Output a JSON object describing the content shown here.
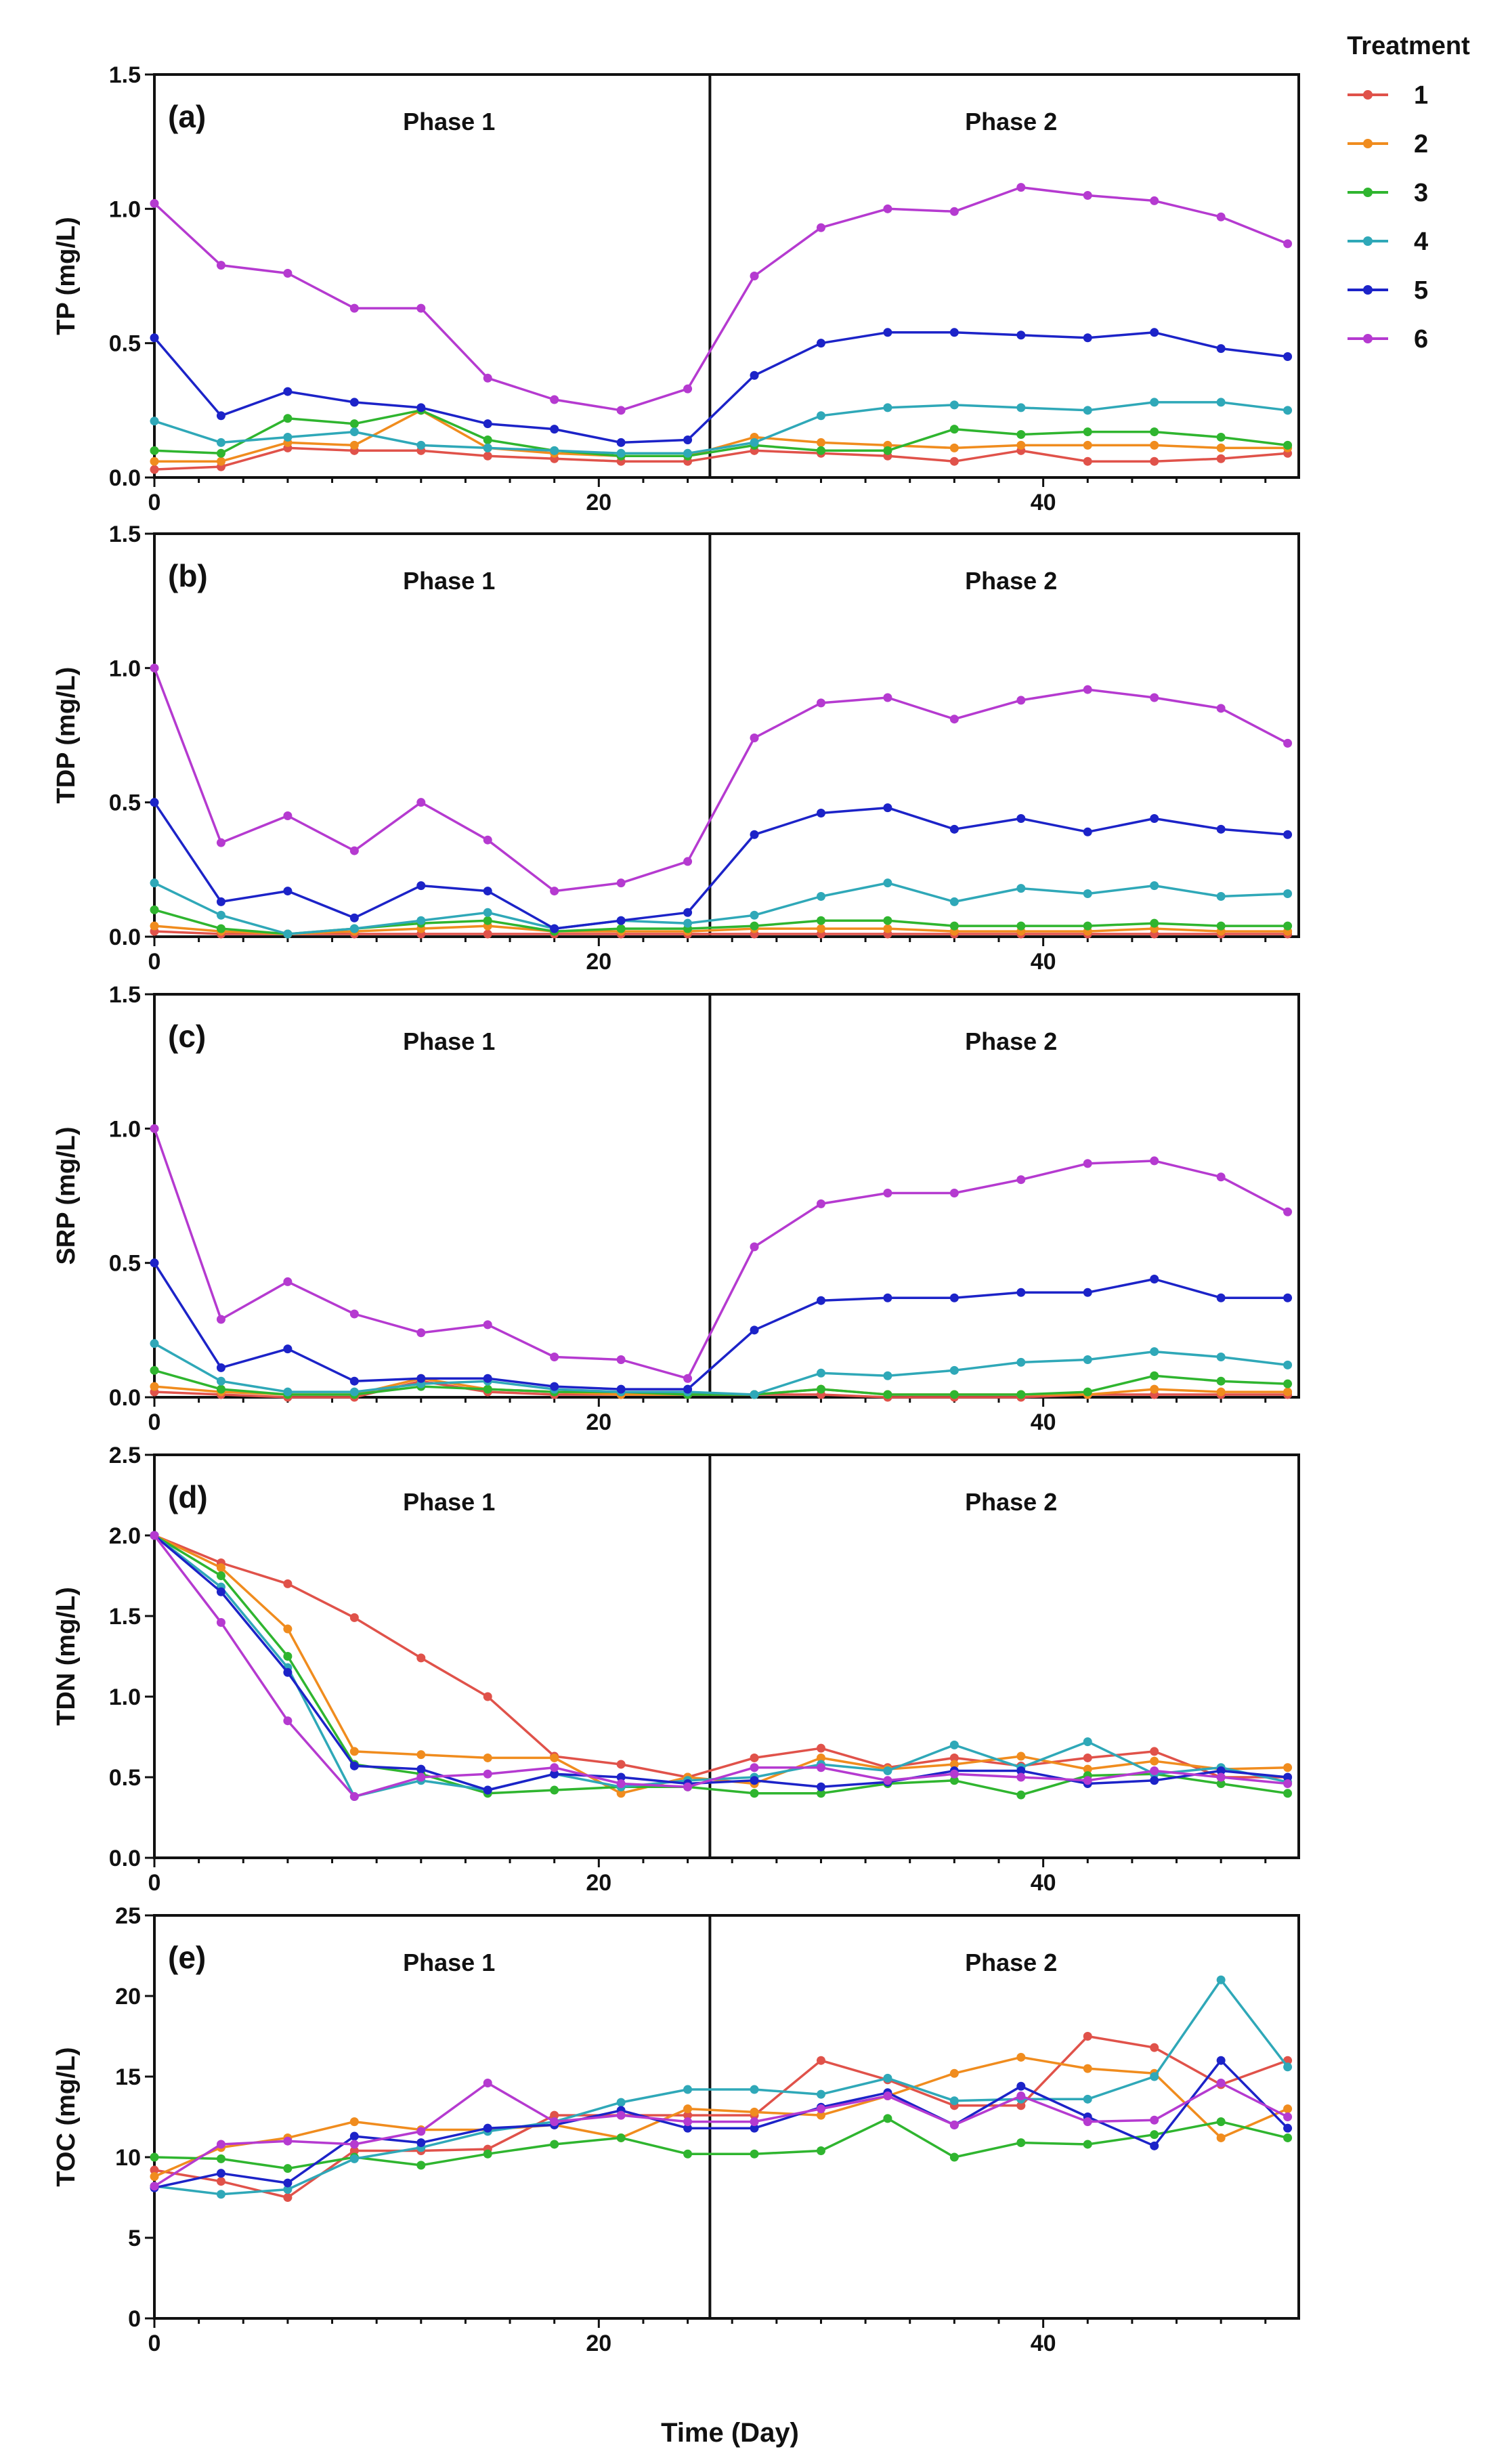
{
  "figure": {
    "xlabel": "Time (Day)",
    "legend_title": "Treatment",
    "legend_position": "top-right",
    "treatments": [
      {
        "name": "1",
        "color": "#e0524a"
      },
      {
        "name": "2",
        "color": "#f08c1e"
      },
      {
        "name": "3",
        "color": "#2fb52f"
      },
      {
        "name": "4",
        "color": "#2fa8b8"
      },
      {
        "name": "5",
        "color": "#1c23c8"
      },
      {
        "name": "6",
        "color": "#b53ad0"
      }
    ]
  },
  "chart_data": [
    {
      "id": "a",
      "panel_label": "(a)",
      "type": "line",
      "ylabel": "TP (mg/L)",
      "ylim": [
        0,
        1.5
      ],
      "yticks": [
        0.0,
        0.5,
        1.0,
        1.5
      ],
      "xlim": [
        0,
        51.5
      ],
      "xticks": [
        0,
        20,
        40
      ],
      "phase_boundary": 25,
      "phases": [
        "Phase 1",
        "Phase 2"
      ],
      "x": [
        0,
        3,
        6,
        9,
        12,
        15,
        18,
        21,
        24,
        27,
        30,
        33,
        36,
        39,
        42,
        45,
        48,
        51
      ],
      "series": [
        {
          "name": "1",
          "values": [
            0.03,
            0.04,
            0.11,
            0.1,
            0.1,
            0.08,
            0.07,
            0.06,
            0.06,
            0.1,
            0.09,
            0.08,
            0.06,
            0.1,
            0.06,
            0.06,
            0.07,
            0.09
          ]
        },
        {
          "name": "2",
          "values": [
            0.06,
            0.06,
            0.13,
            0.12,
            0.25,
            0.11,
            0.09,
            0.08,
            0.08,
            0.15,
            0.13,
            0.12,
            0.11,
            0.12,
            0.12,
            0.12,
            0.11,
            0.11
          ]
        },
        {
          "name": "3",
          "values": [
            0.1,
            0.09,
            0.22,
            0.2,
            0.25,
            0.14,
            0.1,
            0.08,
            0.08,
            0.12,
            0.1,
            0.1,
            0.18,
            0.16,
            0.17,
            0.17,
            0.15,
            0.12
          ]
        },
        {
          "name": "4",
          "values": [
            0.21,
            0.13,
            0.15,
            0.17,
            0.12,
            0.11,
            0.1,
            0.09,
            0.09,
            0.13,
            0.23,
            0.26,
            0.27,
            0.26,
            0.25,
            0.28,
            0.28,
            0.25
          ]
        },
        {
          "name": "5",
          "values": [
            0.52,
            0.23,
            0.32,
            0.28,
            0.26,
            0.2,
            0.18,
            0.13,
            0.14,
            0.38,
            0.5,
            0.54,
            0.54,
            0.53,
            0.52,
            0.54,
            0.48,
            0.45
          ]
        },
        {
          "name": "6",
          "values": [
            1.02,
            0.79,
            0.76,
            0.63,
            0.63,
            0.37,
            0.29,
            0.25,
            0.33,
            0.75,
            0.93,
            1.0,
            0.99,
            1.08,
            1.05,
            1.03,
            0.97,
            0.87
          ]
        }
      ]
    },
    {
      "id": "b",
      "panel_label": "(b)",
      "type": "line",
      "ylabel": "TDP  (mg/L)",
      "ylim": [
        0,
        1.5
      ],
      "yticks": [
        0.0,
        0.5,
        1.0,
        1.5
      ],
      "xlim": [
        0,
        51.5
      ],
      "xticks": [
        0,
        20,
        40
      ],
      "phase_boundary": 25,
      "phases": [
        "Phase 1",
        "Phase 2"
      ],
      "x": [
        0,
        3,
        6,
        9,
        12,
        15,
        18,
        21,
        24,
        27,
        30,
        33,
        36,
        39,
        42,
        45,
        48,
        51
      ],
      "series": [
        {
          "name": "1",
          "values": [
            0.02,
            0.01,
            0.01,
            0.01,
            0.01,
            0.01,
            0.01,
            0.01,
            0.01,
            0.01,
            0.01,
            0.01,
            0.01,
            0.01,
            0.01,
            0.01,
            0.01,
            0.01
          ]
        },
        {
          "name": "2",
          "values": [
            0.04,
            0.02,
            0.01,
            0.02,
            0.03,
            0.04,
            0.02,
            0.02,
            0.02,
            0.03,
            0.03,
            0.03,
            0.02,
            0.02,
            0.02,
            0.03,
            0.02,
            0.02
          ]
        },
        {
          "name": "3",
          "values": [
            0.1,
            0.03,
            0.01,
            0.03,
            0.05,
            0.06,
            0.02,
            0.03,
            0.03,
            0.04,
            0.06,
            0.06,
            0.04,
            0.04,
            0.04,
            0.05,
            0.04,
            0.04
          ]
        },
        {
          "name": "4",
          "values": [
            0.2,
            0.08,
            0.01,
            0.03,
            0.06,
            0.09,
            0.03,
            0.06,
            0.05,
            0.08,
            0.15,
            0.2,
            0.13,
            0.18,
            0.16,
            0.19,
            0.15,
            0.16
          ]
        },
        {
          "name": "5",
          "values": [
            0.5,
            0.13,
            0.17,
            0.07,
            0.19,
            0.17,
            0.03,
            0.06,
            0.09,
            0.38,
            0.46,
            0.48,
            0.4,
            0.44,
            0.39,
            0.44,
            0.4,
            0.38
          ]
        },
        {
          "name": "6",
          "values": [
            1.0,
            0.35,
            0.45,
            0.32,
            0.5,
            0.36,
            0.17,
            0.2,
            0.28,
            0.74,
            0.87,
            0.89,
            0.81,
            0.88,
            0.92,
            0.89,
            0.85,
            0.72
          ]
        }
      ]
    },
    {
      "id": "c",
      "panel_label": "(c)",
      "type": "line",
      "ylabel": "SRP (mg/L)",
      "ylim": [
        0,
        1.5
      ],
      "yticks": [
        0.0,
        0.5,
        1.0,
        1.5
      ],
      "xlim": [
        0,
        51.5
      ],
      "xticks": [
        0,
        20,
        40
      ],
      "phase_boundary": 25,
      "phases": [
        "Phase 1",
        "Phase 2"
      ],
      "x": [
        0,
        3,
        6,
        9,
        12,
        15,
        18,
        21,
        24,
        27,
        30,
        33,
        36,
        39,
        42,
        45,
        48,
        51
      ],
      "series": [
        {
          "name": "1",
          "values": [
            0.02,
            0.01,
            0.0,
            0.0,
            0.06,
            0.02,
            0.01,
            0.01,
            0.01,
            0.01,
            0.01,
            0.0,
            0.0,
            0.0,
            0.01,
            0.01,
            0.01,
            0.01
          ]
        },
        {
          "name": "2",
          "values": [
            0.04,
            0.02,
            0.01,
            0.01,
            0.07,
            0.03,
            0.02,
            0.01,
            0.01,
            0.01,
            0.03,
            0.01,
            0.01,
            0.01,
            0.01,
            0.03,
            0.02,
            0.02
          ]
        },
        {
          "name": "3",
          "values": [
            0.1,
            0.03,
            0.01,
            0.01,
            0.04,
            0.03,
            0.02,
            0.02,
            0.01,
            0.01,
            0.03,
            0.01,
            0.01,
            0.01,
            0.02,
            0.08,
            0.06,
            0.05
          ]
        },
        {
          "name": "4",
          "values": [
            0.2,
            0.06,
            0.02,
            0.02,
            0.05,
            0.06,
            0.03,
            0.02,
            0.02,
            0.01,
            0.09,
            0.08,
            0.1,
            0.13,
            0.14,
            0.17,
            0.15,
            0.12
          ]
        },
        {
          "name": "5",
          "values": [
            0.5,
            0.11,
            0.18,
            0.06,
            0.07,
            0.07,
            0.04,
            0.03,
            0.03,
            0.25,
            0.36,
            0.37,
            0.37,
            0.39,
            0.39,
            0.44,
            0.37,
            0.37
          ]
        },
        {
          "name": "6",
          "values": [
            1.0,
            0.29,
            0.43,
            0.31,
            0.24,
            0.27,
            0.15,
            0.14,
            0.07,
            0.56,
            0.72,
            0.76,
            0.76,
            0.81,
            0.87,
            0.88,
            0.82,
            0.69
          ]
        }
      ]
    },
    {
      "id": "d",
      "panel_label": "(d)",
      "type": "line",
      "ylabel": "TDN (mg/L)",
      "ylim": [
        0,
        2.5
      ],
      "yticks": [
        0.0,
        0.5,
        1.0,
        1.5,
        2.0,
        2.5
      ],
      "xlim": [
        0,
        51.5
      ],
      "xticks": [
        0,
        20,
        40
      ],
      "phase_boundary": 25,
      "phases": [
        "Phase 1",
        "Phase 2"
      ],
      "x": [
        0,
        3,
        6,
        9,
        12,
        15,
        18,
        21,
        24,
        27,
        30,
        33,
        36,
        39,
        42,
        45,
        48,
        51
      ],
      "series": [
        {
          "name": "1",
          "values": [
            2.0,
            1.83,
            1.7,
            1.49,
            1.24,
            1.0,
            0.63,
            0.58,
            0.5,
            0.62,
            0.68,
            0.56,
            0.62,
            0.57,
            0.62,
            0.66,
            0.5,
            0.5
          ]
        },
        {
          "name": "2",
          "values": [
            2.0,
            1.8,
            1.42,
            0.66,
            0.64,
            0.62,
            0.62,
            0.4,
            0.5,
            0.46,
            0.62,
            0.55,
            0.58,
            0.63,
            0.55,
            0.6,
            0.55,
            0.56
          ]
        },
        {
          "name": "3",
          "values": [
            2.0,
            1.75,
            1.25,
            0.58,
            0.52,
            0.4,
            0.42,
            0.44,
            0.44,
            0.4,
            0.4,
            0.46,
            0.48,
            0.39,
            0.51,
            0.52,
            0.46,
            0.4
          ]
        },
        {
          "name": "4",
          "values": [
            2.0,
            1.68,
            1.18,
            0.38,
            0.48,
            0.42,
            0.52,
            0.44,
            0.48,
            0.5,
            0.58,
            0.54,
            0.7,
            0.56,
            0.72,
            0.52,
            0.56,
            0.47
          ]
        },
        {
          "name": "5",
          "values": [
            2.0,
            1.65,
            1.15,
            0.57,
            0.55,
            0.42,
            0.52,
            0.5,
            0.46,
            0.48,
            0.44,
            0.47,
            0.54,
            0.54,
            0.46,
            0.48,
            0.54,
            0.5
          ]
        },
        {
          "name": "6",
          "values": [
            2.0,
            1.46,
            0.85,
            0.38,
            0.5,
            0.52,
            0.56,
            0.46,
            0.44,
            0.56,
            0.56,
            0.48,
            0.52,
            0.5,
            0.48,
            0.54,
            0.5,
            0.46
          ]
        }
      ]
    },
    {
      "id": "e",
      "panel_label": "(e)",
      "type": "line",
      "ylabel": "TOC (mg/L)",
      "ylim": [
        0,
        25
      ],
      "yticks": [
        0,
        5,
        10,
        15,
        20,
        25
      ],
      "xlim": [
        0,
        51.5
      ],
      "xticks": [
        0,
        20,
        40
      ],
      "phase_boundary": 25,
      "phases": [
        "Phase 1",
        "Phase 2"
      ],
      "x": [
        0,
        3,
        6,
        9,
        12,
        15,
        18,
        21,
        24,
        27,
        30,
        33,
        36,
        39,
        42,
        45,
        48,
        51
      ],
      "series": [
        {
          "name": "1",
          "values": [
            9.2,
            8.5,
            7.5,
            10.4,
            10.4,
            10.5,
            12.6,
            12.6,
            12.6,
            12.6,
            16.0,
            14.8,
            13.2,
            13.2,
            17.5,
            16.8,
            14.5,
            16.0
          ]
        },
        {
          "name": "2",
          "values": [
            8.8,
            10.6,
            11.2,
            12.2,
            11.7,
            11.7,
            12.0,
            11.2,
            13.0,
            12.8,
            12.6,
            13.8,
            15.2,
            16.2,
            15.5,
            15.2,
            11.2,
            13.0
          ]
        },
        {
          "name": "3",
          "values": [
            10.0,
            9.9,
            9.3,
            10.0,
            9.5,
            10.2,
            10.8,
            11.2,
            10.2,
            10.2,
            10.4,
            12.4,
            10.0,
            10.9,
            10.8,
            11.4,
            12.2,
            11.2
          ]
        },
        {
          "name": "4",
          "values": [
            8.2,
            7.7,
            8.0,
            9.9,
            10.6,
            11.6,
            12.2,
            13.4,
            14.2,
            14.2,
            13.9,
            14.9,
            13.5,
            13.6,
            13.6,
            15.0,
            21.0,
            15.6
          ]
        },
        {
          "name": "5",
          "values": [
            8.1,
            9.0,
            8.4,
            11.3,
            10.9,
            11.8,
            12.0,
            12.9,
            11.8,
            11.8,
            13.1,
            14.0,
            12.0,
            14.4,
            12.5,
            10.7,
            16.0,
            11.8
          ]
        },
        {
          "name": "6",
          "values": [
            8.2,
            10.8,
            11.0,
            10.8,
            11.6,
            14.6,
            12.2,
            12.6,
            12.2,
            12.2,
            13.0,
            13.8,
            12.0,
            13.8,
            12.2,
            12.3,
            14.6,
            12.5
          ]
        }
      ]
    }
  ]
}
